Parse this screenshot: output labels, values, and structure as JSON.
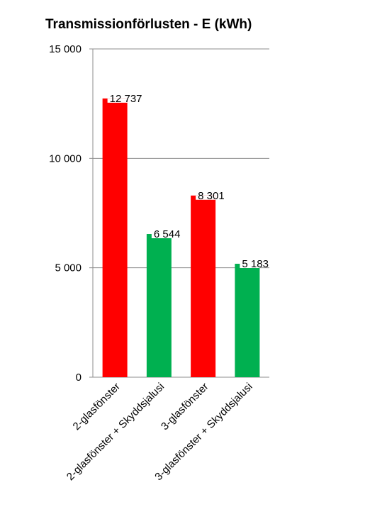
{
  "chart_data": {
    "type": "bar",
    "title": "Transmissionförlusten -  E (kWh)",
    "xlabel": "",
    "ylabel": "",
    "categories": [
      "2-glasfönster",
      "2-glasfönster + Skyddsjalusi",
      "3-glasfönster",
      "3-glasfönster + Skyddsjalusi"
    ],
    "values": [
      12737,
      6544,
      8301,
      5183
    ],
    "value_labels": [
      "12 737",
      "6 544",
      "8 301",
      "5 183"
    ],
    "bar_colors": [
      "#ff0000",
      "#00b050",
      "#ff0000",
      "#00b050"
    ],
    "ylim": [
      0,
      15000
    ],
    "yticks": [
      0,
      5000,
      10000,
      15000
    ],
    "ytick_labels": [
      "0",
      "5 000",
      "10 000",
      "15 000"
    ],
    "grid": true,
    "legend": "none"
  }
}
